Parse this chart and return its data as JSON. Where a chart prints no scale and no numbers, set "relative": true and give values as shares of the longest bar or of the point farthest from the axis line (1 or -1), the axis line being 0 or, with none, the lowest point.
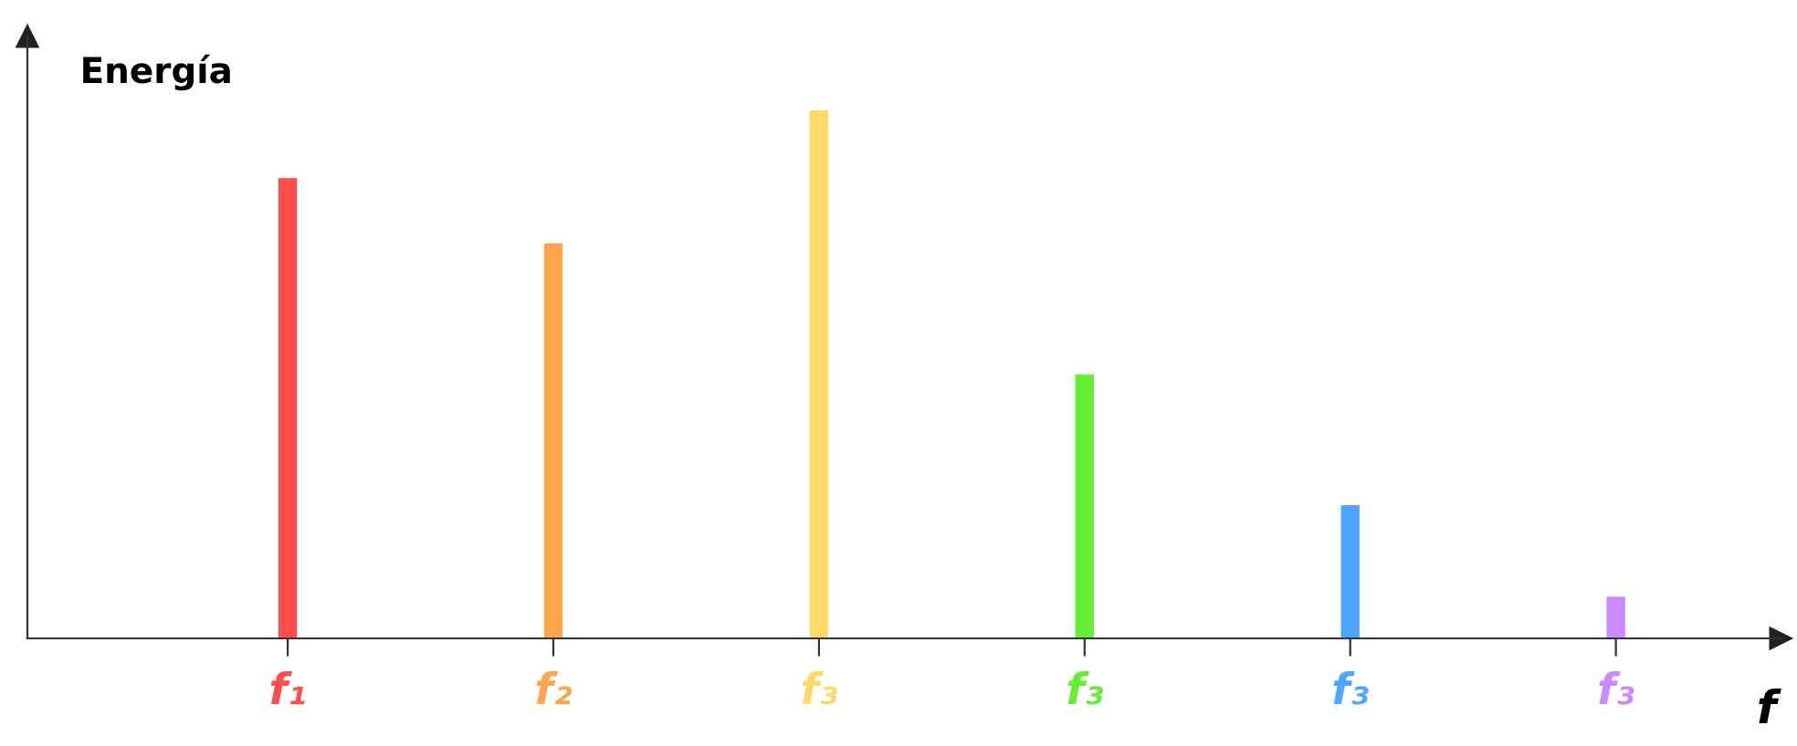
{
  "chart_data": {
    "type": "bar",
    "relative": true,
    "ylabel": "Energía",
    "xlabel": "f",
    "categories": [
      "f₁",
      "f₂",
      "f₃",
      "f₃",
      "f₃",
      "f₃"
    ],
    "values": [
      0.872,
      0.748,
      1,
      0.5,
      0.252,
      0.079
    ],
    "colors": [
      "#ff4d4d",
      "#ffa64d",
      "#ffd966",
      "#66ee33",
      "#4da6ff",
      "#cc88ff"
    ],
    "grid": false,
    "legend": false
  }
}
